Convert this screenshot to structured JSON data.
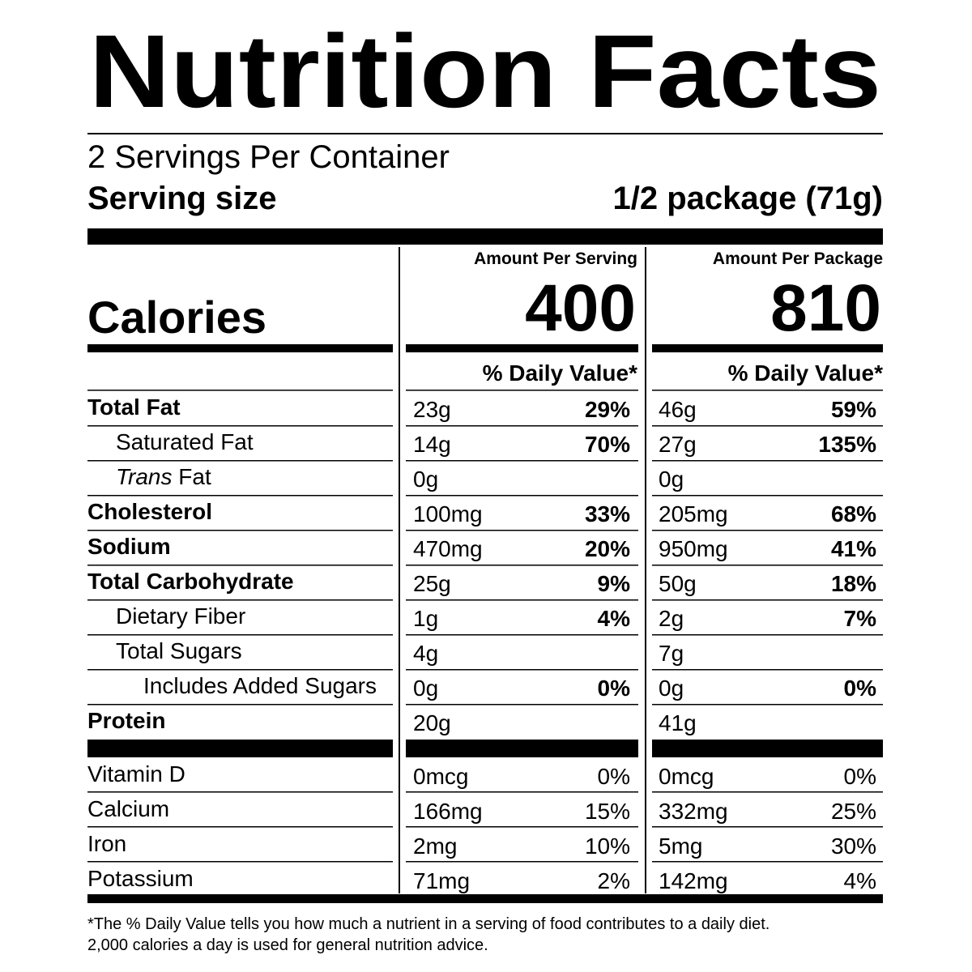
{
  "title": "Nutrition Facts",
  "servings": "2 Servings Per Container",
  "serving_size": {
    "label": "Serving size",
    "value": "1/2 package (71g)"
  },
  "calories": {
    "label": "Calories",
    "columns": [
      {
        "heading": "Amount Per Serving",
        "value": "400",
        "dv_heading": "% Daily Value*"
      },
      {
        "heading": "Amount Per Package",
        "value": "810",
        "dv_heading": "% Daily Value*"
      }
    ]
  },
  "nutrients": [
    {
      "name": "Total Fat",
      "bold": true,
      "indent": 0,
      "per_serving": [
        "23g",
        "29%"
      ],
      "per_package": [
        "46g",
        "59%"
      ]
    },
    {
      "name": "Saturated Fat",
      "bold": false,
      "indent": 1,
      "per_serving": [
        "14g",
        "70%"
      ],
      "per_package": [
        "27g",
        "135%"
      ]
    },
    {
      "name_italic": "Trans",
      "name": " Fat",
      "bold": false,
      "indent": 1,
      "per_serving": [
        "0g"
      ],
      "per_package": [
        "0g"
      ]
    },
    {
      "name": "Cholesterol",
      "bold": true,
      "indent": 0,
      "per_serving": [
        "100mg",
        "33%"
      ],
      "per_package": [
        "205mg",
        "68%"
      ]
    },
    {
      "name": "Sodium",
      "bold": true,
      "indent": 0,
      "per_serving": [
        "470mg",
        "20%"
      ],
      "per_package": [
        "950mg",
        "41%"
      ]
    },
    {
      "name": "Total Carbohydrate",
      "bold": true,
      "indent": 0,
      "per_serving": [
        "25g",
        "9%"
      ],
      "per_package": [
        "50g",
        "18%"
      ]
    },
    {
      "name": "Dietary Fiber",
      "bold": false,
      "indent": 1,
      "per_serving": [
        "1g",
        "4%"
      ],
      "per_package": [
        "2g",
        "7%"
      ]
    },
    {
      "name": "Total Sugars",
      "bold": false,
      "indent": 1,
      "per_serving": [
        "4g"
      ],
      "per_package": [
        "7g"
      ]
    },
    {
      "name": "Includes Added Sugars",
      "bold": false,
      "indent": 2,
      "per_serving": [
        "0g",
        "0%"
      ],
      "per_package": [
        "0g",
        "0%"
      ]
    },
    {
      "name": "Protein",
      "bold": true,
      "indent": 0,
      "per_serving": [
        "20g"
      ],
      "per_package": [
        "41g"
      ]
    }
  ],
  "vitamins": [
    {
      "name": "Vitamin D",
      "per_serving": [
        "0mcg",
        "0%"
      ],
      "per_package": [
        "0mcg",
        "0%"
      ]
    },
    {
      "name": "Calcium",
      "per_serving": [
        "166mg",
        "15%"
      ],
      "per_package": [
        "332mg",
        "25%"
      ]
    },
    {
      "name": "Iron",
      "per_serving": [
        "2mg",
        "10%"
      ],
      "per_package": [
        "5mg",
        "30%"
      ]
    },
    {
      "name": "Potassium",
      "per_serving": [
        "71mg",
        "2%"
      ],
      "per_package": [
        "142mg",
        "4%"
      ]
    }
  ],
  "footnote": [
    "*The % Daily Value tells you how much a nutrient in a serving of food contributes to a daily diet.",
    "2,000 calories a day is used for general nutrition advice."
  ]
}
